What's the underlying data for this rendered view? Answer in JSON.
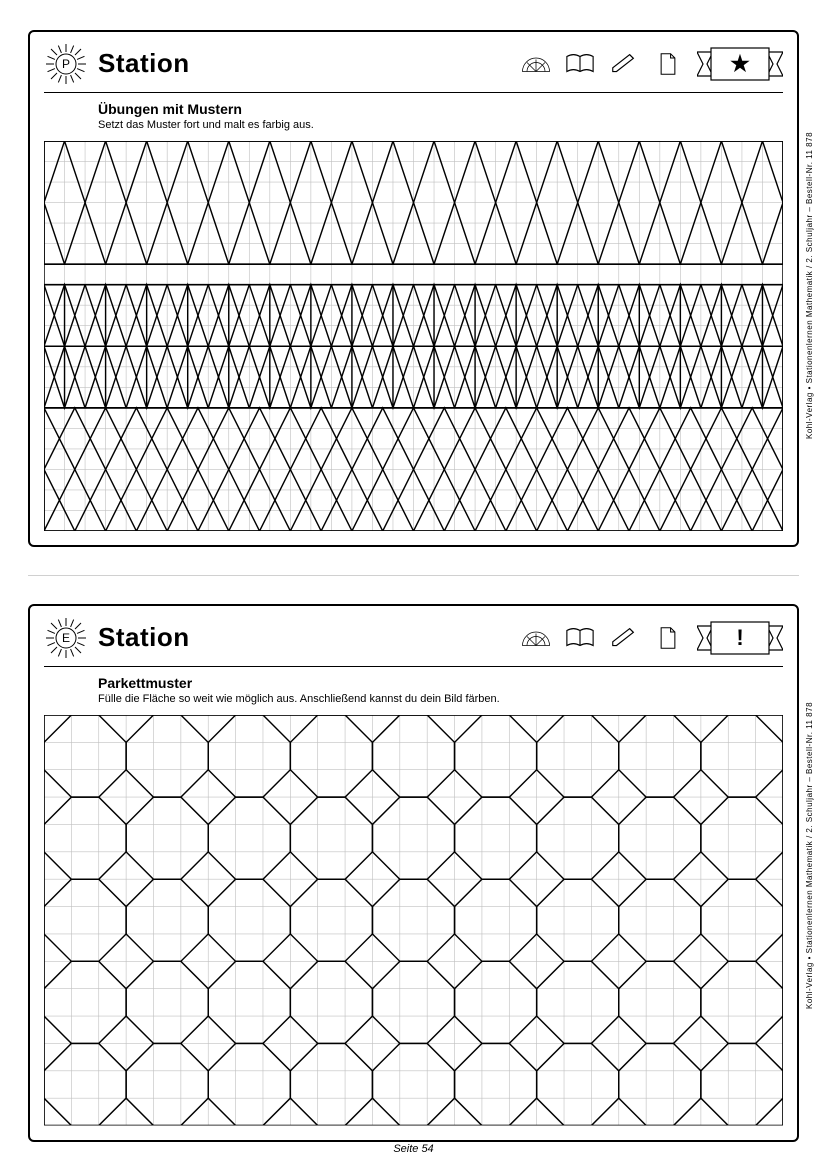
{
  "page": {
    "footer": "Seite 54"
  },
  "sidebar": {
    "text": "Kohl-Verlag  •  Stationenlernen Mathematik  /  2. Schuljahr   –   Bestell-Nr. 11 878"
  },
  "ws1": {
    "badge_letter": "P",
    "title": "Station",
    "subtitle": "Übungen mit Mustern",
    "instruction": "Setzt das Muster fort und malt es farbig aus.",
    "ribbon_glyph": "★",
    "grid": {
      "cell": 20,
      "cols": 36,
      "rows": 19,
      "grid_color": "#c0c0c0",
      "ink": "#000000",
      "band_rows": [
        0,
        7,
        13,
        19
      ]
    },
    "patterns": {
      "hexagons": {
        "band": 0,
        "height_cells": 6,
        "period": 4,
        "points_grid": [
          [
            0,
            3
          ],
          [
            1,
            0
          ],
          [
            3,
            0
          ],
          [
            4,
            3
          ],
          [
            3,
            6
          ],
          [
            1,
            6
          ]
        ]
      },
      "triangles": {
        "band": 1,
        "height_cells": 6,
        "shapes": [
          {
            "type": "poly",
            "period": 2,
            "points_grid": [
              [
                0,
                3
              ],
              [
                1,
                0
              ],
              [
                2,
                3
              ]
            ]
          },
          {
            "type": "poly",
            "period": 2,
            "points_grid": [
              [
                0,
                3
              ],
              [
                1,
                6
              ],
              [
                2,
                3
              ]
            ]
          },
          {
            "type": "line",
            "period": 2,
            "from": [
              1,
              0
            ],
            "to": [
              1,
              6
            ]
          }
        ]
      },
      "rhombi": {
        "band": 2,
        "height_cells": 6,
        "shapes": [
          {
            "type": "poly",
            "period": 3,
            "points_grid": [
              [
                0,
                3
              ],
              [
                1.5,
                0
              ],
              [
                3,
                3
              ],
              [
                1.5,
                6
              ]
            ]
          }
        ]
      }
    }
  },
  "ws2": {
    "badge_letter": "E",
    "title": "Station",
    "subtitle": "Parkettmuster",
    "instruction": "Fülle die Fläche so weit wie möglich aus. Anschließend kannst du dein Bild färben.",
    "ribbon_glyph": "!",
    "grid": {
      "cell": 20,
      "cols_units": 27,
      "rows_units": 15,
      "grid_color": "#c0c0c0",
      "ink": "#000000"
    },
    "octagon": {
      "period": 3,
      "points_grid": [
        [
          1,
          0
        ],
        [
          2,
          0
        ],
        [
          3,
          1
        ],
        [
          3,
          2
        ],
        [
          2,
          3
        ],
        [
          1,
          3
        ],
        [
          0,
          2
        ],
        [
          0,
          1
        ]
      ]
    }
  }
}
